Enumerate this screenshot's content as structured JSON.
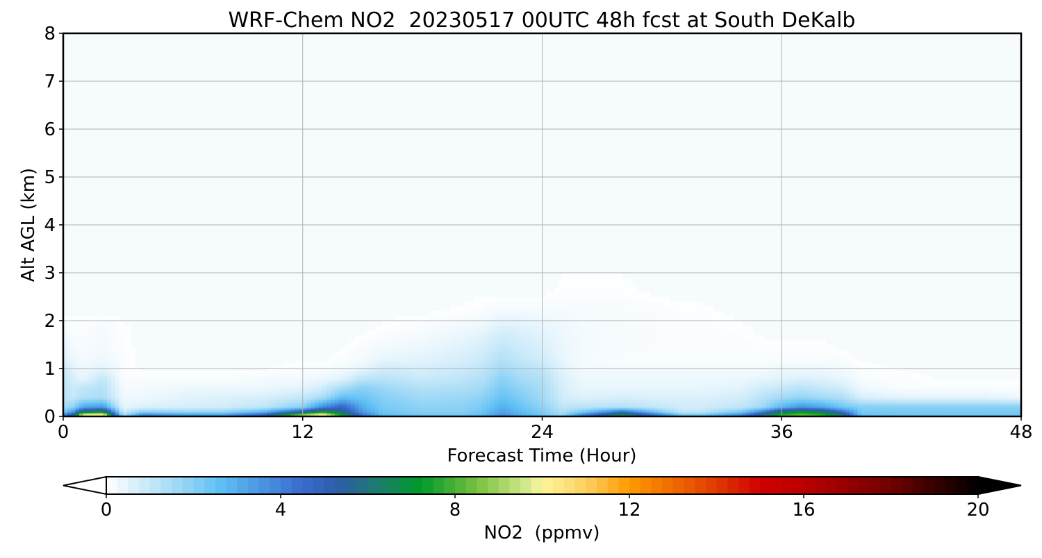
{
  "chart_data": {
    "type": "heatmap",
    "title": "WRF-Chem NO2  20230517 00UTC 48h fcst at South DeKalb",
    "xlabel": "Forecast Time (Hour)",
    "ylabel": "Alt AGL (km)",
    "xlim": [
      0,
      48
    ],
    "ylim": [
      0,
      8
    ],
    "xticks": [
      0,
      12,
      24,
      36,
      48
    ],
    "yticks": [
      0,
      1,
      2,
      3,
      4,
      5,
      6,
      7,
      8
    ],
    "grid": true,
    "colorbar": {
      "label": "NO2  (ppmv)",
      "range": [
        0,
        20
      ],
      "ticks": [
        0,
        4,
        8,
        12,
        16,
        20
      ],
      "extend": "both",
      "levels": 80,
      "colormap_stops": [
        {
          "value": 0,
          "color": "#ffffff"
        },
        {
          "value": 1.5,
          "color": "#a8dcf6"
        },
        {
          "value": 2.6,
          "color": "#5fc0f5"
        },
        {
          "value": 4.4,
          "color": "#3a6fd0"
        },
        {
          "value": 5.3,
          "color": "#2d5ca8"
        },
        {
          "value": 6.2,
          "color": "#1e7a70"
        },
        {
          "value": 7.2,
          "color": "#009a2a"
        },
        {
          "value": 8.5,
          "color": "#78c040"
        },
        {
          "value": 9.7,
          "color": "#d8ec90"
        },
        {
          "value": 10.0,
          "color": "#fff59a"
        },
        {
          "value": 11.0,
          "color": "#fdd060"
        },
        {
          "value": 12.0,
          "color": "#ff9a00"
        },
        {
          "value": 14.0,
          "color": "#e03a00"
        },
        {
          "value": 15.0,
          "color": "#d00000"
        },
        {
          "value": 16.0,
          "color": "#bb0000"
        },
        {
          "value": 18.0,
          "color": "#700000"
        },
        {
          "value": 20.0,
          "color": "#000000"
        }
      ],
      "under_color": "#ffffff",
      "over_color": "#000000"
    },
    "profile_times": [
      0,
      0.5,
      1,
      2,
      3,
      4,
      6,
      8,
      10,
      12,
      13,
      14,
      15,
      16,
      18,
      20,
      21,
      22,
      23,
      24,
      25,
      26,
      28,
      30,
      31,
      32,
      34,
      35,
      36,
      37,
      38,
      39,
      40,
      42,
      44,
      46,
      48
    ],
    "profile_no2_ppmv": {
      "0.00km": [
        4,
        6,
        10,
        11,
        1.5,
        4,
        3.5,
        3.5,
        5,
        9,
        10.5,
        7.5,
        4.5,
        3,
        2.5,
        2.5,
        3,
        4,
        3.2,
        2.6,
        2,
        4,
        7,
        4,
        2.5,
        2.5,
        4,
        6,
        8,
        8.5,
        8,
        6.5,
        2.8,
        2.6,
        2.6,
        2.6,
        2.6
      ],
      "0.05km": [
        3.6,
        5.4,
        9.6,
        10,
        1.3,
        3.6,
        3.1,
        3.1,
        4.6,
        8.6,
        10,
        7,
        4.1,
        2.6,
        2.2,
        2.2,
        2.6,
        3.6,
        2.9,
        2.3,
        1.6,
        3.6,
        6.6,
        3.6,
        2.1,
        2.1,
        3.6,
        5.6,
        7.6,
        8.1,
        7.6,
        6,
        2.4,
        2.3,
        2.3,
        2.3,
        2.3
      ],
      "0.10km": [
        2.2,
        3.6,
        6.5,
        7,
        0.9,
        2,
        1.8,
        1.8,
        2.8,
        5.5,
        7.3,
        5.6,
        3.5,
        2.4,
        2,
        2,
        2.4,
        3.3,
        2.7,
        2.1,
        1.4,
        2.2,
        4.6,
        2,
        1.1,
        1.1,
        2.3,
        4,
        6.3,
        7.2,
        6.4,
        4.6,
        2.2,
        2.2,
        2.2,
        2.2,
        2.2
      ],
      "0.20km": [
        1.5,
        1.9,
        3.2,
        3.5,
        0.4,
        0.6,
        0.7,
        0.8,
        1.1,
        2,
        3.8,
        4.8,
        3,
        2.2,
        1.9,
        1.9,
        2.2,
        3,
        2.4,
        1.9,
        1.1,
        1.2,
        1.3,
        1,
        0.8,
        0.8,
        1.1,
        1.6,
        2.8,
        3.6,
        3.2,
        2.4,
        2,
        2,
        2,
        2,
        2
      ],
      "0.40km": [
        1.2,
        1,
        1.3,
        1.4,
        0.3,
        0.3,
        0.5,
        0.6,
        0.7,
        1,
        1.5,
        2.6,
        2.4,
        2,
        1.6,
        1.7,
        1.9,
        2.5,
        2.1,
        1.6,
        0.8,
        0.6,
        0.7,
        0.6,
        0.6,
        0.6,
        0.8,
        1.2,
        1.6,
        1.8,
        1.6,
        1.4,
        0.7,
        0.5,
        0.5,
        0.5,
        0.3
      ],
      "0.60km": [
        1.2,
        0.9,
        1.1,
        1.3,
        0.2,
        0.2,
        0.3,
        0.3,
        0.3,
        0.5,
        0.8,
        1.5,
        2,
        1.7,
        1.3,
        1.4,
        1.6,
        2.2,
        1.8,
        1.5,
        0.7,
        0.4,
        0.4,
        0.4,
        0.4,
        0.4,
        0.5,
        0.8,
        1,
        1.2,
        1,
        0.8,
        0.3,
        0.1,
        0.1,
        0.1,
        0.1
      ],
      "0.80km": [
        1.1,
        0.7,
        0.4,
        1,
        0.1,
        0.1,
        0.1,
        0.1,
        0.2,
        0.2,
        0.3,
        0.5,
        1.1,
        1.2,
        0.9,
        1.1,
        1.3,
        1.9,
        1.5,
        1.3,
        0.6,
        0.3,
        0.3,
        0.3,
        0.3,
        0.3,
        0.3,
        0.4,
        0.5,
        0.6,
        0.5,
        0.4,
        0.1,
        0.1,
        0,
        0,
        0
      ],
      "1.00km": [
        0.9,
        0.5,
        0.3,
        0.5,
        0.1,
        0,
        0,
        0,
        0,
        0.1,
        0.1,
        0.2,
        0.4,
        0.8,
        0.7,
        0.9,
        1.1,
        1.6,
        1.3,
        1.1,
        0.5,
        0.2,
        0.2,
        0.2,
        0.2,
        0.2,
        0.2,
        0.2,
        0.3,
        0.3,
        0.3,
        0.2,
        0.1,
        0,
        0,
        0,
        0
      ],
      "1.20km": [
        0.6,
        0.3,
        0.2,
        0.3,
        0.1,
        0,
        0,
        0,
        0,
        0,
        0,
        0.1,
        0.2,
        0.4,
        0.5,
        0.7,
        0.9,
        1.3,
        1,
        0.8,
        0.4,
        0.2,
        0.1,
        0.1,
        0.1,
        0.1,
        0.1,
        0.1,
        0.1,
        0.1,
        0.1,
        0.1,
        0,
        0,
        0,
        0,
        0
      ],
      "1.50km": [
        0.4,
        0.2,
        0.15,
        0.2,
        0.05,
        0,
        0,
        0,
        0,
        0,
        0,
        0,
        0.1,
        0.2,
        0.3,
        0.5,
        0.7,
        1,
        0.8,
        0.6,
        0.35,
        0.2,
        0.15,
        0.1,
        0.1,
        0.1,
        0.1,
        0.05,
        0.05,
        0.05,
        0.05,
        0,
        0,
        0,
        0,
        0,
        0
      ],
      "1.80km": [
        0.2,
        0.1,
        0.1,
        0.2,
        0.05,
        0,
        0,
        0,
        0,
        0,
        0,
        0,
        0,
        0.05,
        0.15,
        0.3,
        0.4,
        0.7,
        0.6,
        0.45,
        0.3,
        0.2,
        0.15,
        0.1,
        0.1,
        0.1,
        0.05,
        0,
        0,
        0,
        0,
        0,
        0,
        0,
        0,
        0,
        0
      ],
      "2.20km": [
        0,
        0,
        0,
        0,
        0,
        0,
        0,
        0,
        0,
        0,
        0,
        0,
        0,
        0,
        0,
        0.05,
        0.1,
        0.2,
        0.2,
        0.2,
        0.2,
        0.15,
        0.15,
        0.1,
        0.05,
        0.05,
        0,
        0,
        0,
        0,
        0,
        0,
        0,
        0,
        0,
        0,
        0
      ],
      "2.60km": [
        0,
        0,
        0,
        0,
        0,
        0,
        0,
        0,
        0,
        0,
        0,
        0,
        0,
        0,
        0,
        0,
        0,
        0,
        0,
        0,
        0.05,
        0.05,
        0.05,
        0,
        0,
        0,
        0,
        0,
        0,
        0,
        0,
        0,
        0,
        0,
        0,
        0,
        0
      ],
      "3.50km": [
        0,
        0,
        0,
        0,
        0,
        0,
        0,
        0,
        0,
        0,
        0,
        0,
        0,
        0,
        0,
        0,
        0,
        0,
        0,
        0,
        0,
        0,
        0,
        0,
        0,
        0,
        0,
        0,
        0,
        0,
        0,
        0,
        0,
        0,
        0,
        0,
        0
      ],
      "8.00km": [
        0,
        0,
        0,
        0,
        0,
        0,
        0,
        0,
        0,
        0,
        0,
        0,
        0,
        0,
        0,
        0,
        0,
        0,
        0,
        0,
        0,
        0,
        0,
        0,
        0,
        0,
        0,
        0,
        0,
        0,
        0,
        0,
        0,
        0,
        0,
        0,
        0
      ]
    }
  }
}
